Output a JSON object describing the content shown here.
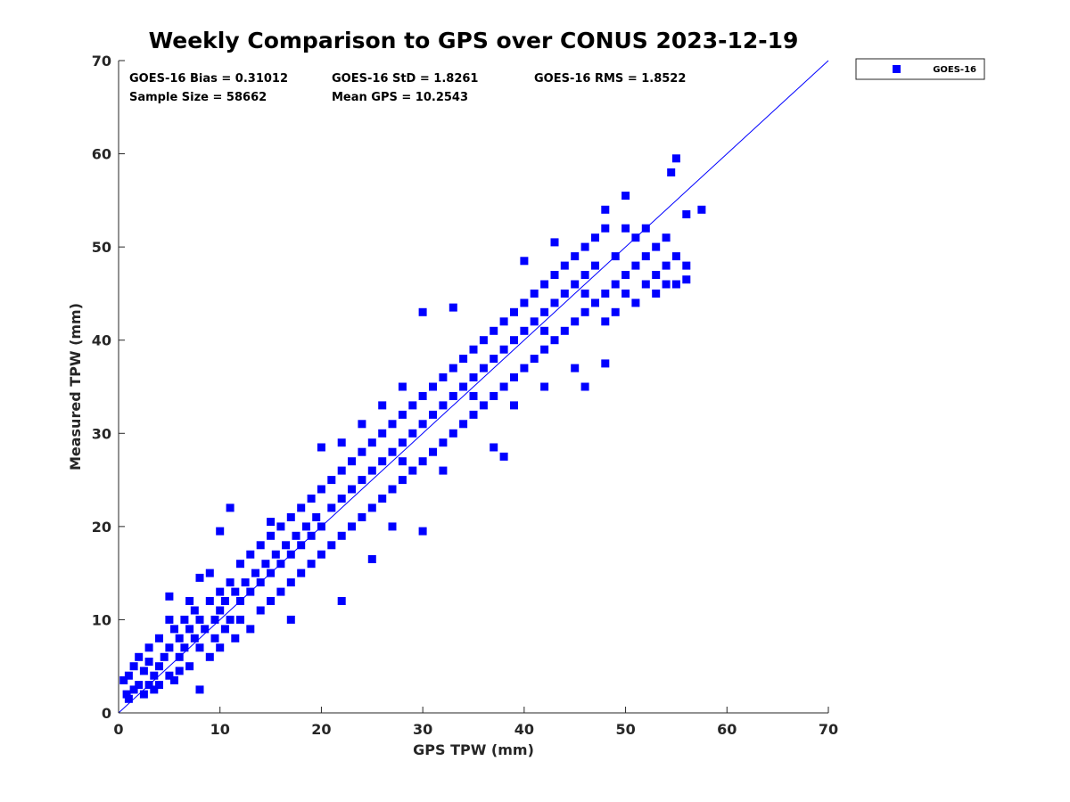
{
  "chart_data": {
    "type": "scatter",
    "title": "Weekly Comparison to GPS over CONUS 2023-12-19",
    "xlabel": "GPS TPW (mm)",
    "ylabel": "Measured TPW (mm)",
    "xlim": [
      0,
      70
    ],
    "ylim": [
      0,
      70
    ],
    "xticks": [
      "0",
      "10",
      "20",
      "30",
      "40",
      "50",
      "60",
      "70"
    ],
    "yticks": [
      "0",
      "10",
      "20",
      "30",
      "40",
      "50",
      "60",
      "70"
    ],
    "grid": false,
    "legend_position": "outside-top-right",
    "color": "#0000ff",
    "stats": {
      "bias": "GOES-16 Bias = 0.31012",
      "std": "GOES-16 StD = 1.8261",
      "rms": "GOES-16 RMS = 1.8522",
      "sample_size": "Sample Size = 58662",
      "mean_gps": "Mean GPS = 10.2543"
    },
    "reference_line": {
      "name": "1:1 line",
      "from": [
        0,
        0
      ],
      "to": [
        70,
        70
      ]
    },
    "series": [
      {
        "name": "GOES-16",
        "marker": "square",
        "points": [
          [
            0.5,
            3.5
          ],
          [
            0.8,
            2
          ],
          [
            1,
            1.5
          ],
          [
            1,
            4
          ],
          [
            1.5,
            2.5
          ],
          [
            1.5,
            5
          ],
          [
            2,
            3
          ],
          [
            2,
            6
          ],
          [
            2.5,
            2
          ],
          [
            2.5,
            4.5
          ],
          [
            3,
            3
          ],
          [
            3,
            7
          ],
          [
            3,
            5.5
          ],
          [
            3.5,
            2.5
          ],
          [
            3.5,
            4
          ],
          [
            4,
            5
          ],
          [
            4,
            3
          ],
          [
            4,
            8
          ],
          [
            4.5,
            6
          ],
          [
            5,
            4
          ],
          [
            5,
            7
          ],
          [
            5,
            10
          ],
          [
            5,
            12.5
          ],
          [
            5.5,
            3.5
          ],
          [
            5.5,
            9
          ],
          [
            6,
            6
          ],
          [
            6,
            8
          ],
          [
            6,
            4.5
          ],
          [
            6.5,
            10
          ],
          [
            6.5,
            7
          ],
          [
            7,
            5
          ],
          [
            7,
            9
          ],
          [
            7,
            12
          ],
          [
            7.5,
            8
          ],
          [
            7.5,
            11
          ],
          [
            8,
            7
          ],
          [
            8,
            10
          ],
          [
            8,
            14.5
          ],
          [
            8,
            2.5
          ],
          [
            8.5,
            9
          ],
          [
            9,
            6
          ],
          [
            9,
            12
          ],
          [
            9,
            15
          ],
          [
            9.5,
            10
          ],
          [
            9.5,
            8
          ],
          [
            10,
            11
          ],
          [
            10,
            13
          ],
          [
            10,
            7
          ],
          [
            10,
            19.5
          ],
          [
            10.5,
            12
          ],
          [
            10.5,
            9
          ],
          [
            11,
            14
          ],
          [
            11,
            10
          ],
          [
            11,
            22
          ],
          [
            11.5,
            13
          ],
          [
            11.5,
            8
          ],
          [
            12,
            12
          ],
          [
            12,
            16
          ],
          [
            12,
            10
          ],
          [
            12.5,
            14
          ],
          [
            13,
            13
          ],
          [
            13,
            17
          ],
          [
            13,
            9
          ],
          [
            13.5,
            15
          ],
          [
            14,
            14
          ],
          [
            14,
            18
          ],
          [
            14,
            11
          ],
          [
            14.5,
            16
          ],
          [
            15,
            15
          ],
          [
            15,
            19
          ],
          [
            15,
            12
          ],
          [
            15,
            20.5
          ],
          [
            15.5,
            17
          ],
          [
            16,
            16
          ],
          [
            16,
            20
          ],
          [
            16,
            13
          ],
          [
            16.5,
            18
          ],
          [
            17,
            17
          ],
          [
            17,
            21
          ],
          [
            17,
            14
          ],
          [
            17,
            10
          ],
          [
            17.5,
            19
          ],
          [
            18,
            18
          ],
          [
            18,
            22
          ],
          [
            18,
            15
          ],
          [
            18.5,
            20
          ],
          [
            19,
            19
          ],
          [
            19,
            23
          ],
          [
            19,
            16
          ],
          [
            19.5,
            21
          ],
          [
            20,
            20
          ],
          [
            20,
            24
          ],
          [
            20,
            17
          ],
          [
            20,
            28.5
          ],
          [
            21,
            22
          ],
          [
            21,
            25
          ],
          [
            21,
            18
          ],
          [
            22,
            23
          ],
          [
            22,
            26
          ],
          [
            22,
            19
          ],
          [
            22,
            29
          ],
          [
            22,
            12
          ],
          [
            23,
            24
          ],
          [
            23,
            27
          ],
          [
            23,
            20
          ],
          [
            24,
            25
          ],
          [
            24,
            28
          ],
          [
            24,
            21
          ],
          [
            24,
            31
          ],
          [
            25,
            26
          ],
          [
            25,
            29
          ],
          [
            25,
            22
          ],
          [
            25,
            16.5
          ],
          [
            26,
            27
          ],
          [
            26,
            30
          ],
          [
            26,
            23
          ],
          [
            26,
            33
          ],
          [
            27,
            28
          ],
          [
            27,
            31
          ],
          [
            27,
            24
          ],
          [
            27,
            20
          ],
          [
            28,
            29
          ],
          [
            28,
            32
          ],
          [
            28,
            25
          ],
          [
            28,
            35
          ],
          [
            29,
            30
          ],
          [
            29,
            33
          ],
          [
            29,
            26
          ],
          [
            30,
            31
          ],
          [
            30,
            34
          ],
          [
            30,
            27
          ],
          [
            30,
            43
          ],
          [
            30,
            19.5
          ],
          [
            31,
            32
          ],
          [
            31,
            35
          ],
          [
            31,
            28
          ],
          [
            32,
            33
          ],
          [
            32,
            36
          ],
          [
            32,
            29
          ],
          [
            32,
            26
          ],
          [
            33,
            34
          ],
          [
            33,
            37
          ],
          [
            33,
            30
          ],
          [
            33,
            43.5
          ],
          [
            34,
            35
          ],
          [
            34,
            38
          ],
          [
            34,
            31
          ],
          [
            35,
            36
          ],
          [
            35,
            39
          ],
          [
            35,
            32
          ],
          [
            36,
            37
          ],
          [
            36,
            40
          ],
          [
            36,
            33
          ],
          [
            37,
            38
          ],
          [
            37,
            41
          ],
          [
            37,
            34
          ],
          [
            37,
            28.5
          ],
          [
            38,
            39
          ],
          [
            38,
            42
          ],
          [
            38,
            35
          ],
          [
            38,
            27.5
          ],
          [
            39,
            40
          ],
          [
            39,
            43
          ],
          [
            39,
            36
          ],
          [
            39,
            33
          ],
          [
            40,
            41
          ],
          [
            40,
            44
          ],
          [
            40,
            37
          ],
          [
            40,
            48.5
          ],
          [
            41,
            42
          ],
          [
            41,
            45
          ],
          [
            41,
            38
          ],
          [
            42,
            43
          ],
          [
            42,
            46
          ],
          [
            42,
            39
          ],
          [
            42,
            35
          ],
          [
            43,
            44
          ],
          [
            43,
            47
          ],
          [
            43,
            40
          ],
          [
            43,
            50.5
          ],
          [
            44,
            45
          ],
          [
            44,
            48
          ],
          [
            44,
            41
          ],
          [
            45,
            46
          ],
          [
            45,
            49
          ],
          [
            45,
            42
          ],
          [
            45,
            37
          ],
          [
            46,
            47
          ],
          [
            46,
            50
          ],
          [
            46,
            43
          ],
          [
            46,
            35
          ],
          [
            47,
            48
          ],
          [
            47,
            51
          ],
          [
            47,
            44
          ],
          [
            48,
            45
          ],
          [
            48,
            42
          ],
          [
            48,
            52
          ],
          [
            48,
            54
          ],
          [
            48,
            37.5
          ],
          [
            49,
            46
          ],
          [
            49,
            49
          ],
          [
            49,
            43
          ],
          [
            50,
            47
          ],
          [
            50,
            45
          ],
          [
            50,
            52
          ],
          [
            50,
            55.5
          ],
          [
            51,
            48
          ],
          [
            51,
            44
          ],
          [
            51,
            51
          ],
          [
            52,
            46
          ],
          [
            52,
            49
          ],
          [
            52,
            52
          ],
          [
            53,
            47
          ],
          [
            53,
            50
          ],
          [
            53,
            45
          ],
          [
            54,
            48
          ],
          [
            54,
            51
          ],
          [
            54,
            46
          ],
          [
            55,
            49
          ],
          [
            55,
            59.5
          ],
          [
            54.5,
            58
          ],
          [
            55,
            46
          ],
          [
            56,
            48
          ],
          [
            56,
            46.5
          ],
          [
            56,
            53.5
          ],
          [
            57.5,
            54
          ],
          [
            28,
            27
          ],
          [
            35,
            34
          ],
          [
            42,
            41
          ],
          [
            46,
            45
          ]
        ]
      }
    ]
  }
}
